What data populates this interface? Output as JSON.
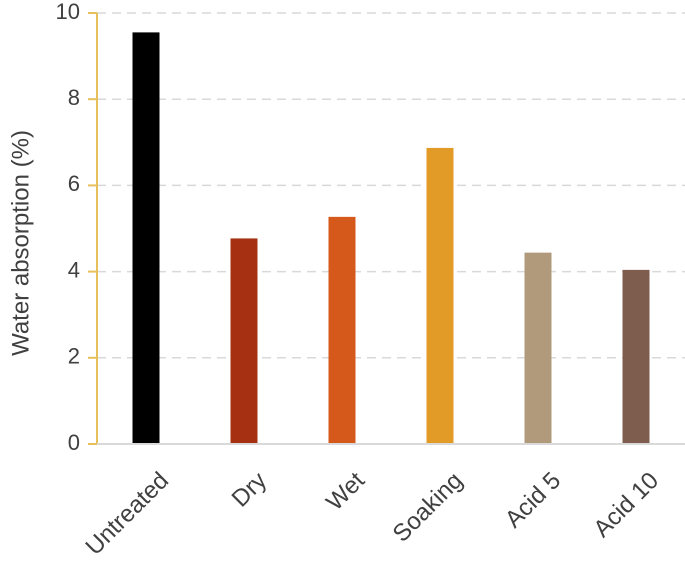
{
  "chart_data": {
    "type": "bar",
    "title": "",
    "xlabel": "",
    "ylabel": "Water absorption (%)",
    "ylim": [
      0,
      10
    ],
    "yticks": [
      0,
      2,
      4,
      6,
      8,
      10
    ],
    "grid": true,
    "categories": [
      "Untreated",
      "Dry",
      "Wet",
      "Soaking",
      "Acid 5",
      "Acid 10"
    ],
    "values": [
      9.55,
      4.77,
      5.27,
      6.87,
      4.44,
      4.04
    ],
    "colors": [
      "#000000",
      "#A53012",
      "#D4591A",
      "#E39B27",
      "#B09A7B",
      "#7E5C4E"
    ],
    "axis_color": "#E8C05A",
    "grid_color": "#D9D9D9"
  }
}
